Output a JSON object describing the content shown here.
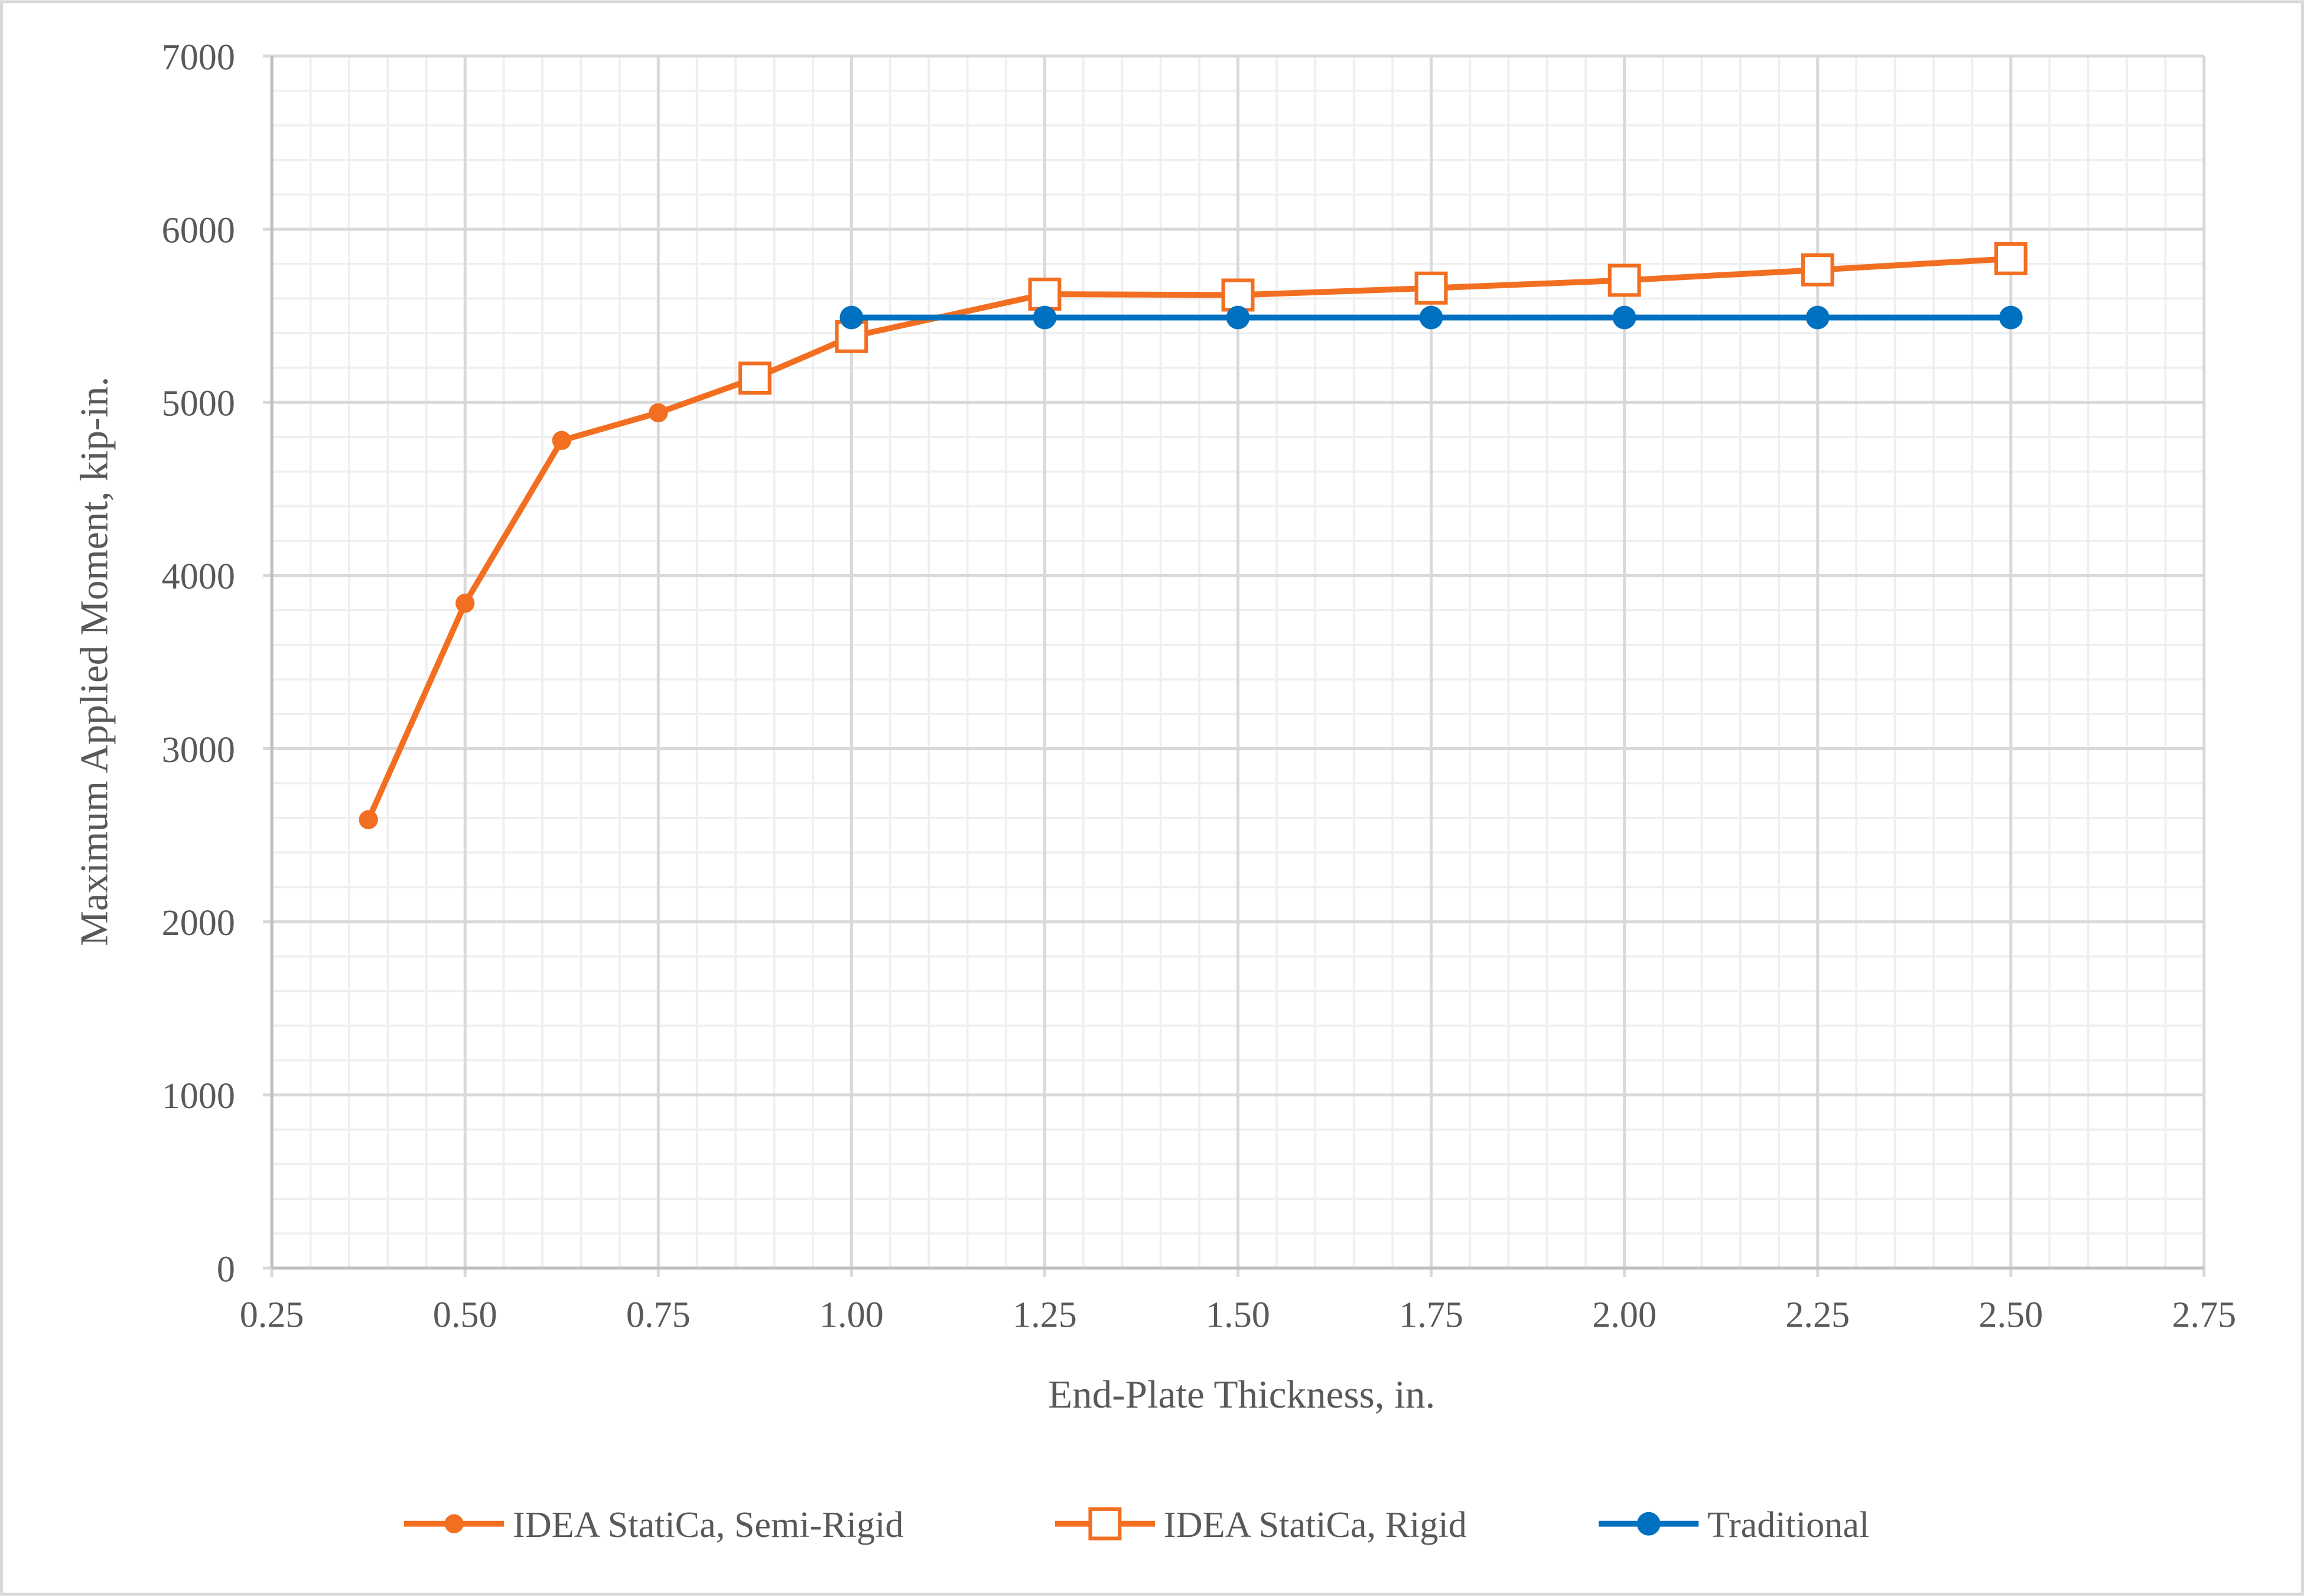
{
  "chart_data": {
    "type": "line",
    "title": "",
    "xlabel": "End-Plate Thickness, in.",
    "ylabel": "Maximum Applied Moment, kip-in.",
    "xlim": [
      0.25,
      2.75
    ],
    "ylim": [
      0,
      7000
    ],
    "x_ticks": [
      "0.25",
      "0.50",
      "0.75",
      "1.00",
      "1.25",
      "1.50",
      "1.75",
      "2.00",
      "2.25",
      "2.50",
      "2.75"
    ],
    "y_ticks": [
      "0",
      "1000",
      "2000",
      "3000",
      "4000",
      "5000",
      "6000",
      "7000"
    ],
    "x_minor_step": 0.05,
    "y_minor_step": 200,
    "grid": true,
    "legend_position": "bottom",
    "series": [
      {
        "name": "IDEA StatiCa, Semi-Rigid",
        "color": "#F26F21",
        "marker": "filled-circle",
        "x": [
          0.375,
          0.5,
          0.625,
          0.75,
          0.875
        ],
        "y": [
          2590,
          3840,
          4780,
          4940,
          5140
        ]
      },
      {
        "name": "IDEA StatiCa, Rigid",
        "color": "#F26F21",
        "marker": "open-square",
        "x": [
          0.875,
          1.0,
          1.25,
          1.5,
          1.75,
          2.0,
          2.25,
          2.5
        ],
        "y": [
          5140,
          5380,
          5625,
          5620,
          5660,
          5705,
          5765,
          5830
        ]
      },
      {
        "name": "Traditional",
        "color": "#0070C0",
        "marker": "filled-circle-large",
        "x": [
          1.0,
          1.25,
          1.5,
          1.75,
          2.0,
          2.25,
          2.5
        ],
        "y": [
          5490,
          5490,
          5490,
          5490,
          5490,
          5490,
          5490
        ]
      }
    ]
  }
}
